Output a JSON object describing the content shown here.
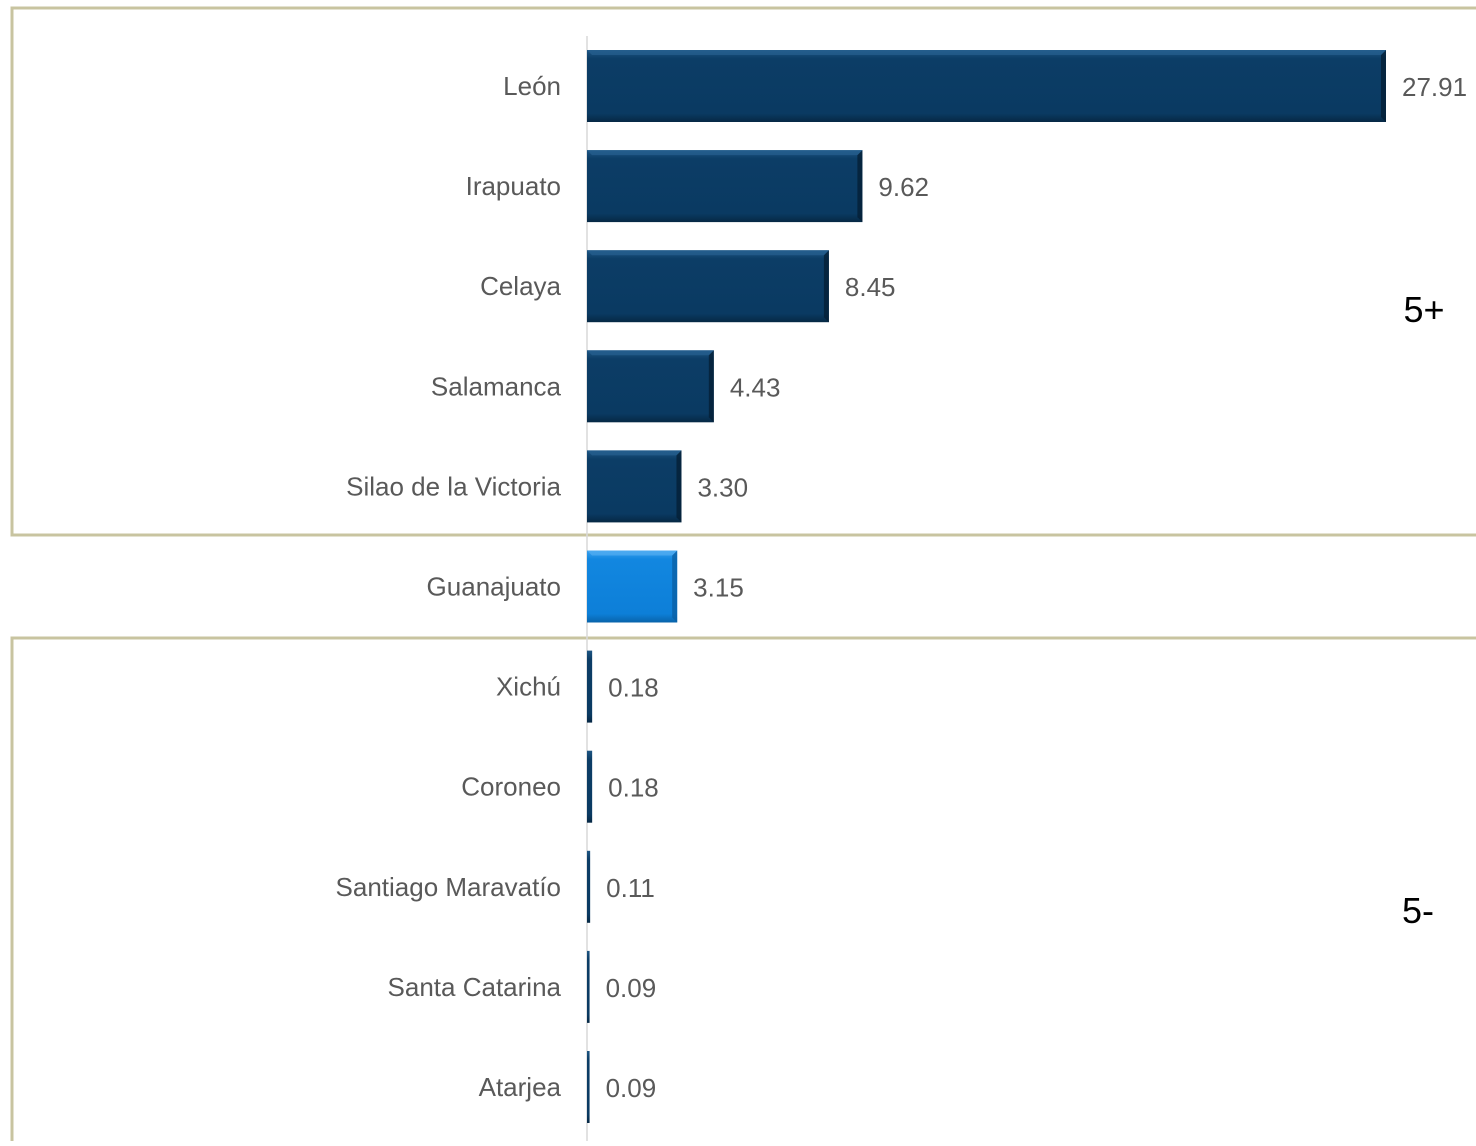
{
  "chart_data": {
    "type": "bar",
    "orientation": "horizontal",
    "categories": [
      "León",
      "Irapuato",
      "Celaya",
      "Salamanca",
      "Silao de la Victoria",
      "Guanajuato",
      "Xichú",
      "Coroneo",
      "Santiago Maravatío",
      "Santa Catarina",
      "Atarjea"
    ],
    "values": [
      27.91,
      9.62,
      8.45,
      4.43,
      3.3,
      3.15,
      0.18,
      0.18,
      0.11,
      0.09,
      0.09
    ],
    "value_labels": [
      "27.91",
      "9.62",
      "8.45",
      "4.43",
      "3.30",
      "3.15",
      "0.18",
      "0.18",
      "0.11",
      "0.09",
      "0.09"
    ],
    "bar_colors": [
      "#0a3a62",
      "#0a3a62",
      "#0a3a62",
      "#0a3a62",
      "#0a3a62",
      "#0d7fd8",
      "#0a3a62",
      "#0a3a62",
      "#0a3a62",
      "#0a3a62",
      "#0a3a62"
    ],
    "xlim": [
      0,
      27.91
    ],
    "grid": false,
    "legend": "none",
    "groups": [
      {
        "label": "5+",
        "start_index": 0,
        "end_index": 4
      },
      {
        "label": "5-",
        "start_index": 6,
        "end_index": 10
      }
    ]
  },
  "colors": {
    "bar_dark": "#0a3a62",
    "bar_highlight": "#0d7fd8",
    "group_border": "#c8c4a0",
    "axis_line": "#d9d9d9",
    "category_text": "#595959",
    "value_text": "#595959",
    "group_label_text": "#000000"
  }
}
